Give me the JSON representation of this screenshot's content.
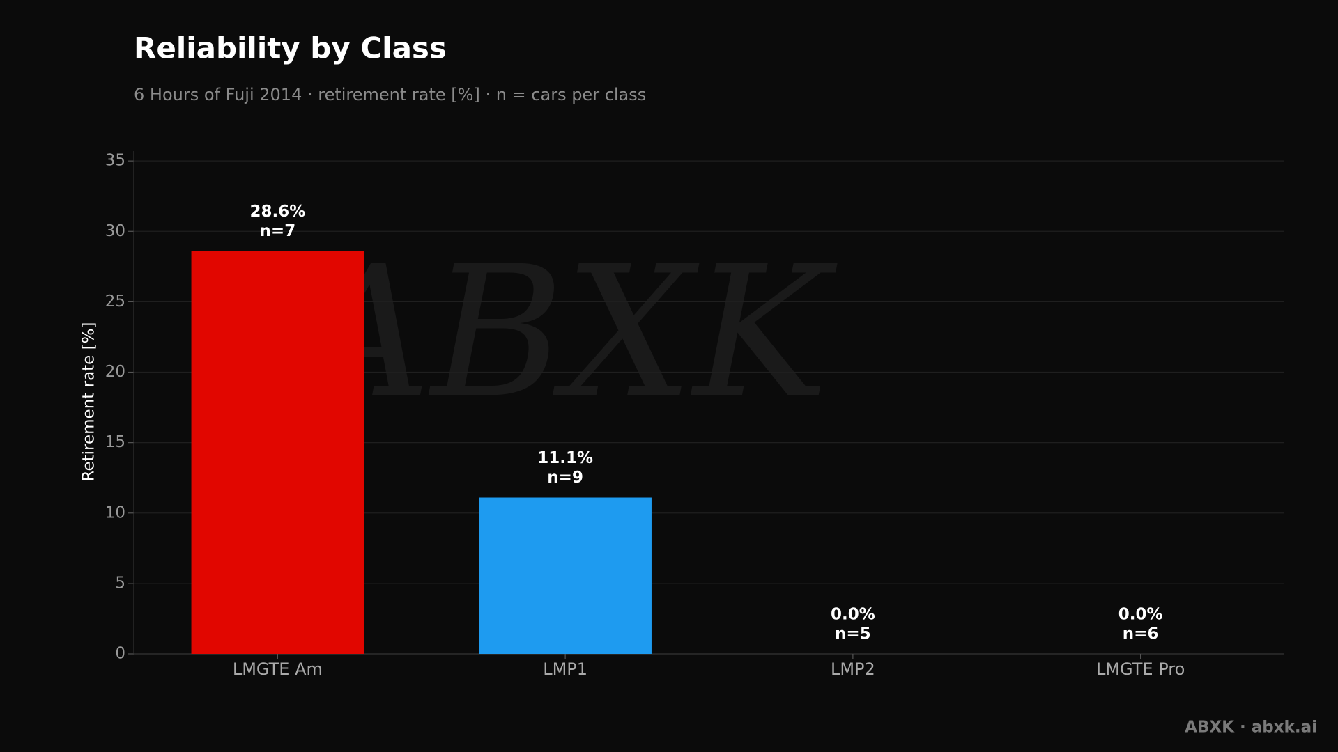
{
  "chart_data": {
    "type": "bar",
    "title": "Reliability by Class",
    "subtitle": "6 Hours of Fuji 2014 · retirement rate [%] · n = cars per class",
    "y_label": "Retirement rate [%]",
    "categories": [
      "LMGTE Am",
      "LMP1",
      "LMP2",
      "LMGTE Pro"
    ],
    "values": [
      28.6,
      11.1,
      0,
      0
    ],
    "value_labels": [
      "28.6%",
      "11.1%",
      "0.0%",
      "0.0%"
    ],
    "n_labels": [
      "n=7",
      "n=9",
      "n=5",
      "n=6"
    ],
    "colors": [
      "#e10600",
      "#1e9bf0",
      "#888888",
      "#888888"
    ],
    "ylim": [
      0,
      35.7
    ],
    "yticks": [
      0,
      5,
      10,
      15,
      20,
      25,
      30,
      35
    ],
    "grid": true,
    "footer": "ABXK · abxk.ai"
  }
}
